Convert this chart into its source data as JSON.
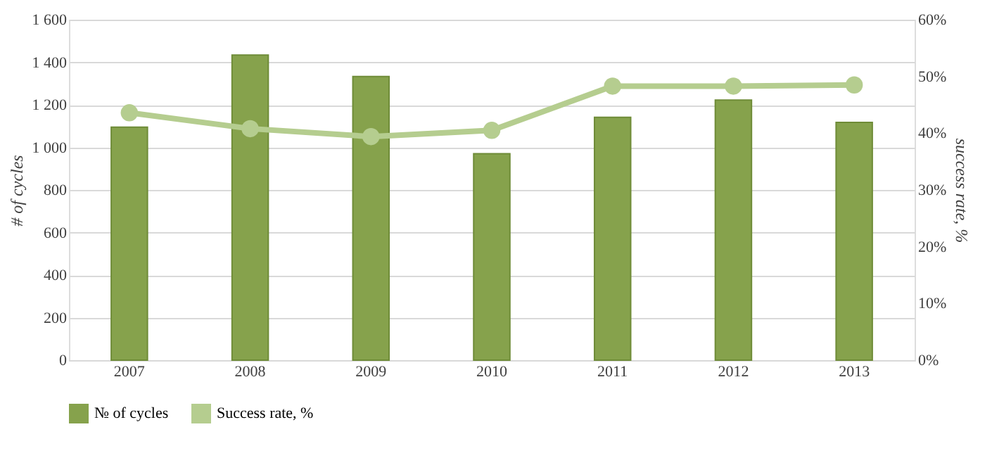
{
  "chart_data": {
    "type": "bar",
    "categories": [
      "2007",
      "2008",
      "2009",
      "2010",
      "2011",
      "2012",
      "2013"
    ],
    "ylabel": "# of cycles",
    "y2label": "success rate, %",
    "series": [
      {
        "name": "№ of cycles",
        "color": "#86a24c",
        "values": [
          1095,
          1434,
          1333,
          970,
          1141,
          1222,
          1117
        ]
      },
      {
        "name": "Success rate, %",
        "type": "line",
        "axis": "y2",
        "color": "#b5cd8f",
        "marker": "circle",
        "values": [
          43.6,
          40.8,
          39.4,
          40.5,
          48.3,
          48.3,
          48.5
        ]
      }
    ],
    "ylim": [
      0,
      1600
    ],
    "yticks": [
      {
        "value": 0,
        "label": "0"
      },
      {
        "value": 200,
        "label": "200"
      },
      {
        "value": 400,
        "label": "400"
      },
      {
        "value": 600,
        "label": "600"
      },
      {
        "value": 800,
        "label": "800"
      },
      {
        "value": 1000,
        "label": "1 000"
      },
      {
        "value": 1200,
        "label": "1 200"
      },
      {
        "value": 1400,
        "label": "1 400"
      },
      {
        "value": 1600,
        "label": "1 600"
      }
    ],
    "y2lim": [
      0,
      60
    ],
    "y2ticks": [
      {
        "value": 0,
        "label": "0%"
      },
      {
        "value": 10,
        "label": "10%"
      },
      {
        "value": 20,
        "label": "20%"
      },
      {
        "value": 30,
        "label": "30%"
      },
      {
        "value": 40,
        "label": "40%"
      },
      {
        "value": 50,
        "label": "50%"
      },
      {
        "value": 60,
        "label": "60%"
      }
    ],
    "grid": "y",
    "legend": "bottom"
  }
}
